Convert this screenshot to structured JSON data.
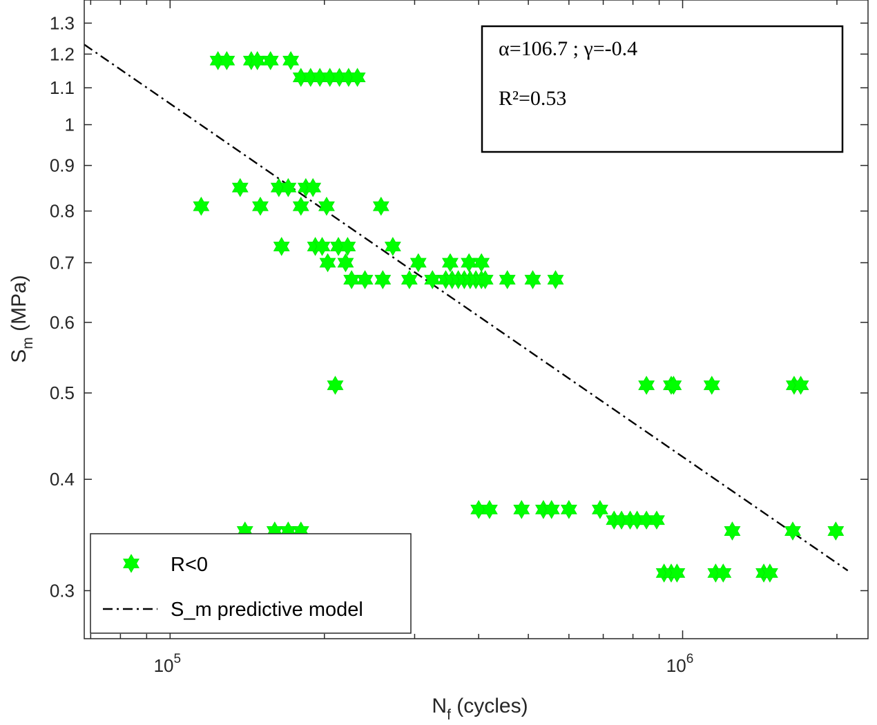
{
  "chart_data": {
    "type": "scatter",
    "x_scale": "log",
    "y_scale": "log",
    "xlim": [
      68000,
      2300000
    ],
    "ylim": [
      0.265,
      1.38
    ],
    "xlabel": {
      "main": "N",
      "sub": "f",
      "rest": " (cycles)"
    },
    "ylabel": {
      "main": "S",
      "sub": "m",
      "rest": " (MPa)"
    },
    "x_ticks": [
      {
        "value": 100000,
        "base": "10",
        "exp": "5"
      },
      {
        "value": 1000000,
        "base": "10",
        "exp": "6"
      }
    ],
    "y_ticks": [
      {
        "value": 0.3,
        "label": "0.3"
      },
      {
        "value": 0.4,
        "label": "0.4"
      },
      {
        "value": 0.5,
        "label": "0.5"
      },
      {
        "value": 0.6,
        "label": "0.6"
      },
      {
        "value": 0.7,
        "label": "0.7"
      },
      {
        "value": 0.8,
        "label": "0.8"
      },
      {
        "value": 0.9,
        "label": "0.9"
      },
      {
        "value": 1.0,
        "label": "1"
      },
      {
        "value": 1.1,
        "label": "1.1"
      },
      {
        "value": 1.2,
        "label": "1.2"
      },
      {
        "value": 1.3,
        "label": "1.3"
      }
    ],
    "grid": false,
    "annotation": {
      "line1": "α=106.7 ; γ=-0.4",
      "line2": "R²=0.53"
    },
    "legend": {
      "placement": "bottom-left",
      "entries": [
        "R<0",
        "S_m predictive model"
      ]
    },
    "series": [
      {
        "name": "R<0",
        "marker": "hexagram",
        "color": "#00ff00",
        "points": [
          [
            124000,
            1.18
          ],
          [
            129000,
            1.18
          ],
          [
            144000,
            1.18
          ],
          [
            148000,
            1.18
          ],
          [
            157000,
            1.18
          ],
          [
            172000,
            1.18
          ],
          [
            180000,
            1.13
          ],
          [
            188000,
            1.13
          ],
          [
            196000,
            1.13
          ],
          [
            205000,
            1.13
          ],
          [
            214000,
            1.13
          ],
          [
            223000,
            1.13
          ],
          [
            232000,
            1.13
          ],
          [
            115000,
            0.81
          ],
          [
            137000,
            0.85
          ],
          [
            150000,
            0.81
          ],
          [
            163000,
            0.85
          ],
          [
            170000,
            0.85
          ],
          [
            180000,
            0.81
          ],
          [
            184000,
            0.85
          ],
          [
            190000,
            0.85
          ],
          [
            202000,
            0.81
          ],
          [
            258000,
            0.81
          ],
          [
            165000,
            0.73
          ],
          [
            192000,
            0.73
          ],
          [
            198000,
            0.73
          ],
          [
            213000,
            0.73
          ],
          [
            222000,
            0.73
          ],
          [
            272000,
            0.73
          ],
          [
            203000,
            0.7
          ],
          [
            220000,
            0.7
          ],
          [
            305000,
            0.7
          ],
          [
            352000,
            0.7
          ],
          [
            383000,
            0.7
          ],
          [
            405000,
            0.7
          ],
          [
            226000,
            0.67
          ],
          [
            240000,
            0.67
          ],
          [
            260000,
            0.67
          ],
          [
            293000,
            0.67
          ],
          [
            325000,
            0.67
          ],
          [
            345000,
            0.67
          ],
          [
            355000,
            0.67
          ],
          [
            365000,
            0.67
          ],
          [
            375000,
            0.67
          ],
          [
            385000,
            0.67
          ],
          [
            395000,
            0.67
          ],
          [
            405000,
            0.67
          ],
          [
            412000,
            0.67
          ],
          [
            455000,
            0.67
          ],
          [
            510000,
            0.67
          ],
          [
            565000,
            0.67
          ],
          [
            210000,
            0.51
          ],
          [
            850000,
            0.51
          ],
          [
            950000,
            0.51
          ],
          [
            960000,
            0.51
          ],
          [
            1140000,
            0.51
          ],
          [
            1650000,
            0.51
          ],
          [
            1700000,
            0.51
          ],
          [
            400000,
            0.37
          ],
          [
            420000,
            0.37
          ],
          [
            485000,
            0.37
          ],
          [
            535000,
            0.37
          ],
          [
            555000,
            0.37
          ],
          [
            600000,
            0.37
          ],
          [
            690000,
            0.37
          ],
          [
            735000,
            0.36
          ],
          [
            760000,
            0.36
          ],
          [
            790000,
            0.36
          ],
          [
            815000,
            0.36
          ],
          [
            850000,
            0.36
          ],
          [
            890000,
            0.36
          ],
          [
            140000,
            0.35
          ],
          [
            160000,
            0.35
          ],
          [
            170000,
            0.35
          ],
          [
            180000,
            0.35
          ],
          [
            1250000,
            0.35
          ],
          [
            1640000,
            0.35
          ],
          [
            1990000,
            0.35
          ],
          [
            920000,
            0.314
          ],
          [
            950000,
            0.314
          ],
          [
            975000,
            0.314
          ],
          [
            1160000,
            0.314
          ],
          [
            1200000,
            0.314
          ],
          [
            1440000,
            0.314
          ],
          [
            1480000,
            0.314
          ]
        ]
      },
      {
        "name": "S_m predictive model",
        "style": "dash-dot",
        "color": "#000000",
        "points": [
          [
            68000,
            1.23
          ],
          [
            2100000,
            0.316
          ]
        ]
      }
    ]
  }
}
